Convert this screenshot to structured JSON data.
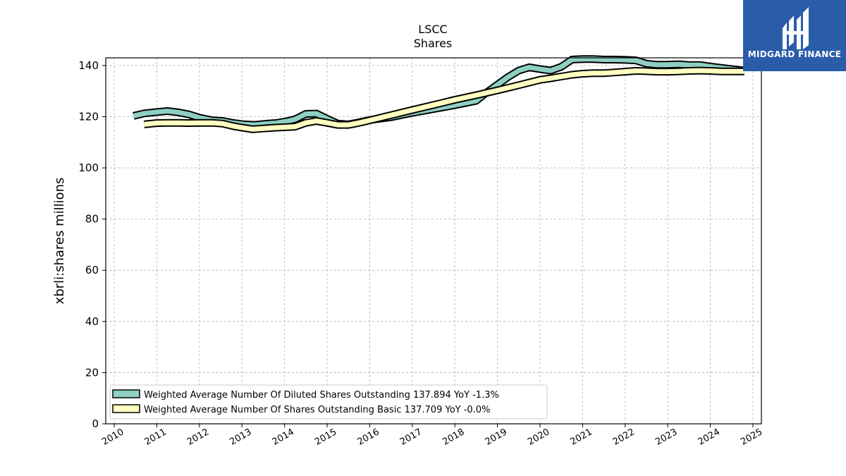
{
  "brand": {
    "name": "MIDGARD FINANCE",
    "color": "#2a5caa"
  },
  "chart_data": {
    "type": "line",
    "title": "LSCC",
    "subtitle": "Shares",
    "ylabel": "xbrli:shares millions",
    "xlabel": "",
    "ylim": [
      0,
      143
    ],
    "xlim": [
      2009.8,
      2025.2
    ],
    "yticks": [
      0,
      20,
      40,
      60,
      80,
      100,
      120,
      140
    ],
    "xticks": [
      "2010",
      "2011",
      "2012",
      "2013",
      "2014",
      "2015",
      "2016",
      "2017",
      "2018",
      "2019",
      "2020",
      "2021",
      "2022",
      "2023",
      "2024",
      "2025"
    ],
    "grid": true,
    "legend_position": "lower-left",
    "series": [
      {
        "name": "Weighted Average Number Of Diluted Shares Outstanding  137.894 YoY -1.3%",
        "color": "#8ecfc3",
        "x": [
          2010.45,
          2010.7,
          2011.0,
          2011.25,
          2011.5,
          2011.75,
          2012.0,
          2012.3,
          2012.55,
          2012.8,
          2013.05,
          2013.3,
          2013.55,
          2013.8,
          2014.05,
          2014.25,
          2014.5,
          2014.75,
          2015.0,
          2015.25,
          2015.5,
          2015.75,
          2016.0,
          2016.5,
          2017.0,
          2017.5,
          2018.0,
          2018.5,
          2018.75,
          2019.0,
          2019.25,
          2019.5,
          2019.75,
          2020.0,
          2020.25,
          2020.5,
          2020.75,
          2021.0,
          2021.25,
          2021.5,
          2021.75,
          2022.0,
          2022.25,
          2022.5,
          2022.75,
          2023.0,
          2023.25,
          2023.5,
          2023.75,
          2024.0,
          2024.25,
          2024.5,
          2024.8
        ],
        "values": [
          120.3,
          121.3,
          121.8,
          122.2,
          121.7,
          120.9,
          119.6,
          118.6,
          118.3,
          117.5,
          117.0,
          116.8,
          117.2,
          117.5,
          118.2,
          119.0,
          121.1,
          121.2,
          119.2,
          117.3,
          117.0,
          117.8,
          118.7,
          119.8,
          121.5,
          123.0,
          124.5,
          126.2,
          129.5,
          132.5,
          135.5,
          138.0,
          139.3,
          138.6,
          138.0,
          139.5,
          142.3,
          142.5,
          142.5,
          142.3,
          142.3,
          142.2,
          142.0,
          140.7,
          140.3,
          140.3,
          140.5,
          140.2,
          140.2,
          139.6,
          139.1,
          138.6,
          138.0
        ]
      },
      {
        "name": "Weighted Average Number Of Shares Outstanding Basic  137.709 YoY -0.0%",
        "color": "#ffffc0",
        "x": [
          2010.7,
          2011.0,
          2011.25,
          2011.5,
          2011.75,
          2012.0,
          2012.3,
          2012.55,
          2012.8,
          2013.05,
          2013.25,
          2013.5,
          2013.75,
          2014.0,
          2014.25,
          2014.5,
          2014.75,
          2015.0,
          2015.25,
          2015.5,
          2015.75,
          2016.0,
          2016.5,
          2017.0,
          2017.5,
          2018.0,
          2018.5,
          2019.0,
          2019.5,
          2020.0,
          2020.25,
          2020.5,
          2020.75,
          2021.0,
          2021.25,
          2021.5,
          2021.75,
          2022.0,
          2022.25,
          2022.5,
          2022.75,
          2023.0,
          2023.25,
          2023.5,
          2023.75,
          2024.0,
          2024.25,
          2024.5,
          2024.8
        ],
        "values": [
          117.0,
          117.5,
          117.6,
          117.6,
          117.5,
          117.6,
          117.6,
          117.3,
          116.3,
          115.6,
          115.1,
          115.4,
          115.7,
          115.9,
          116.1,
          117.6,
          118.3,
          117.6,
          116.8,
          116.8,
          117.6,
          118.6,
          120.6,
          122.6,
          124.6,
          126.6,
          128.4,
          130.3,
          132.3,
          134.4,
          135.0,
          135.7,
          136.4,
          136.8,
          137.0,
          137.0,
          137.3,
          137.6,
          137.9,
          137.8,
          137.6,
          137.6,
          137.7,
          137.9,
          138.0,
          137.9,
          137.7,
          137.7,
          137.7
        ]
      }
    ]
  }
}
